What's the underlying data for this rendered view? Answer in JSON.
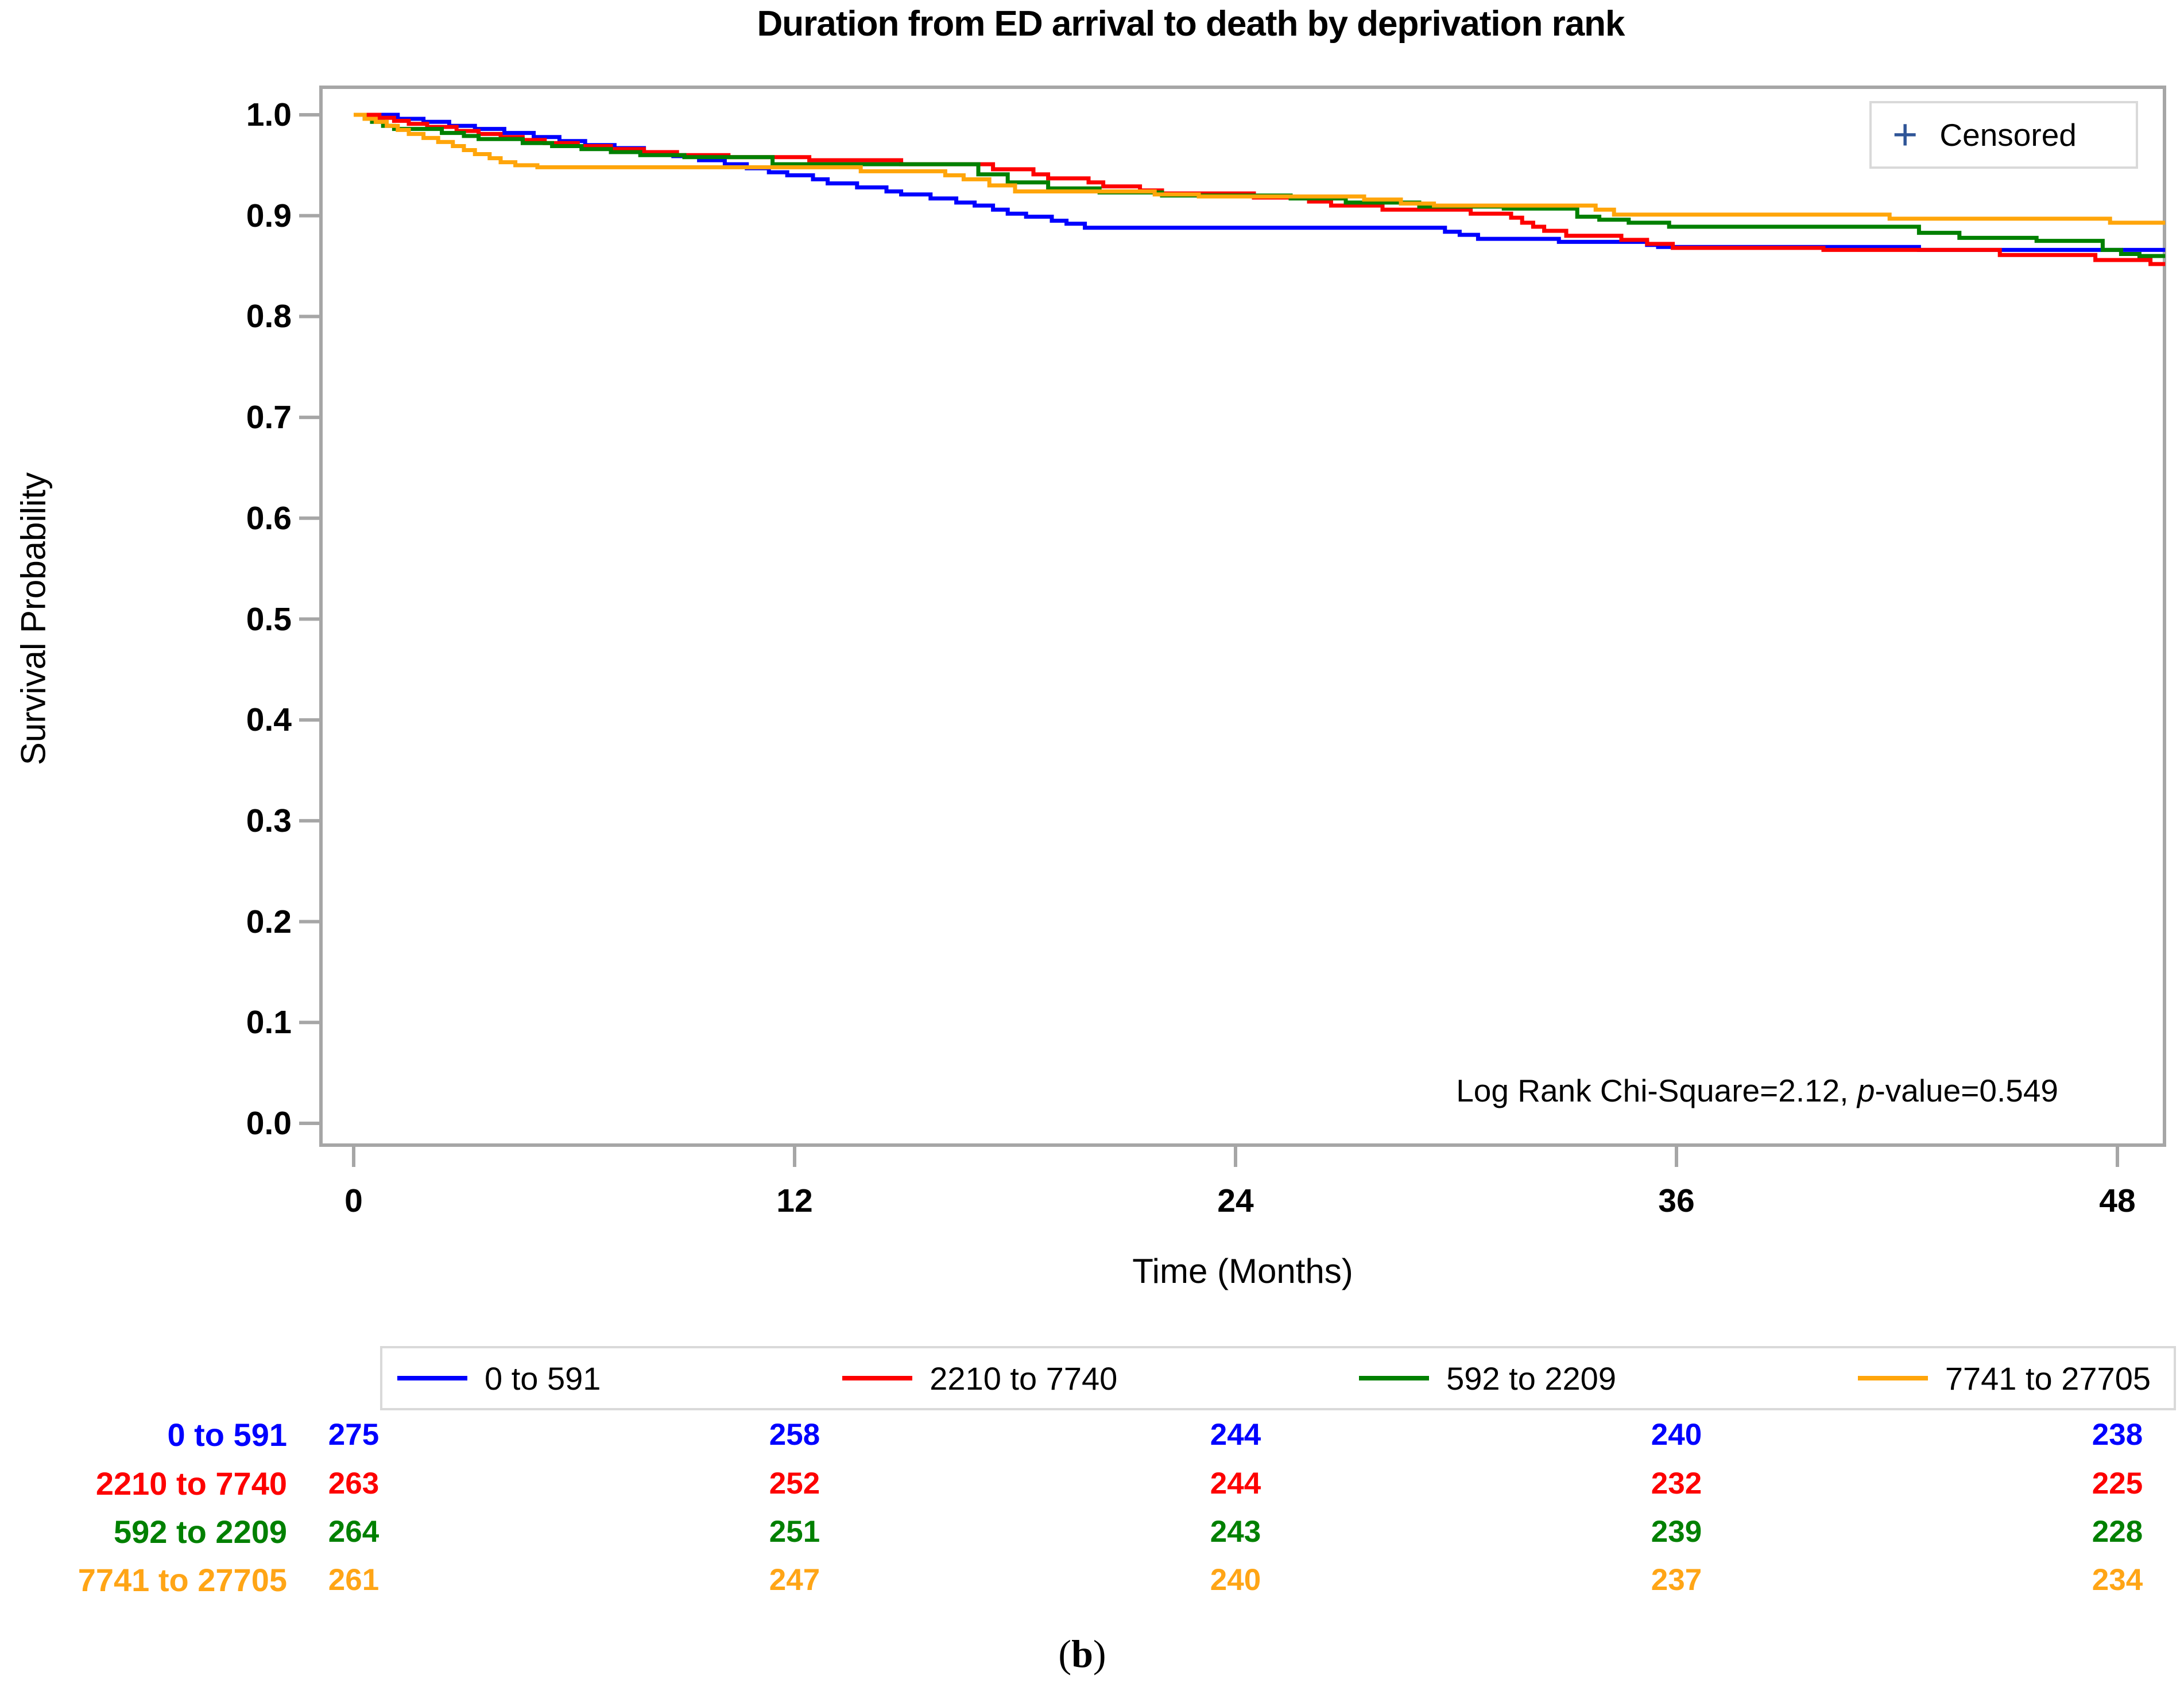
{
  "title": "Duration from ED arrival to death by deprivation rank",
  "caption_paren_open": "(",
  "caption_letter": "b",
  "caption_paren_close": ")",
  "censored": {
    "symbol": "+",
    "label": "Censored"
  },
  "annotation": {
    "prefix": "Log Rank Chi-Square=2.12, ",
    "p": "p",
    "suffix": "-value=0.549"
  },
  "axes": {
    "x": {
      "label": "Time (Months)",
      "ticks": [
        0,
        12,
        24,
        36,
        48
      ],
      "range": [
        0,
        49.3
      ]
    },
    "y": {
      "label": "Survival Probability",
      "tick_labels": [
        "1.0",
        "0.9",
        "0.8",
        "0.7",
        "0.6",
        "0.5",
        "0.4",
        "0.3",
        "0.2",
        "0.1",
        "0.0"
      ],
      "range": [
        0.0,
        1.0
      ]
    }
  },
  "style_colors": {
    "frame": "#a6a6a6",
    "legend_border": "#d9d9d9",
    "censor_plus": "#2f5597",
    "text": "#000000"
  },
  "chart_data": {
    "type": "line",
    "subtype": "kaplan-meier-step",
    "title": "Duration from ED arrival to death by deprivation rank",
    "xlabel": "Time (Months)",
    "ylabel": "Survival Probability",
    "xlim": [
      0,
      49.3
    ],
    "ylim": [
      0.0,
      1.0
    ],
    "x_ticks": [
      0,
      12,
      24,
      36,
      48
    ],
    "y_ticks": [
      1.0,
      0.9,
      0.8,
      0.7,
      0.6,
      0.5,
      0.4,
      0.3,
      0.2,
      0.1,
      0.0
    ],
    "grid": false,
    "legend_position": "bottom",
    "annotation": "Log Rank Chi-Square=2.12, p-value=0.549",
    "series": [
      {
        "name": "0 to 591",
        "color": "#0000fe",
        "points": [
          [
            0,
            1.0
          ],
          [
            1.2,
            0.996
          ],
          [
            1.9,
            0.993
          ],
          [
            2.6,
            0.989
          ],
          [
            3.3,
            0.986
          ],
          [
            4.1,
            0.982
          ],
          [
            4.9,
            0.978
          ],
          [
            5.6,
            0.974
          ],
          [
            6.3,
            0.97
          ],
          [
            7.1,
            0.967
          ],
          [
            7.9,
            0.963
          ],
          [
            8.7,
            0.959
          ],
          [
            9.4,
            0.955
          ],
          [
            10.1,
            0.951
          ],
          [
            10.7,
            0.947
          ],
          [
            11.3,
            0.943
          ],
          [
            11.8,
            0.94
          ],
          [
            12.5,
            0.936
          ],
          [
            12.9,
            0.932
          ],
          [
            13.7,
            0.928
          ],
          [
            14.5,
            0.924
          ],
          [
            14.9,
            0.921
          ],
          [
            15.7,
            0.917
          ],
          [
            16.4,
            0.913
          ],
          [
            16.9,
            0.91
          ],
          [
            17.4,
            0.906
          ],
          [
            17.8,
            0.902
          ],
          [
            18.3,
            0.899
          ],
          [
            19.0,
            0.895
          ],
          [
            19.4,
            0.892
          ],
          [
            19.9,
            0.888
          ],
          [
            29.7,
            0.884
          ],
          [
            30.1,
            0.881
          ],
          [
            30.6,
            0.877
          ],
          [
            32.8,
            0.874
          ],
          [
            35.2,
            0.871
          ],
          [
            35.5,
            0.869
          ],
          [
            42.6,
            0.866
          ],
          [
            49.3,
            0.866
          ]
        ]
      },
      {
        "name": "2210 to 7740",
        "color": "#fd0000",
        "points": [
          [
            0,
            1.0
          ],
          [
            0.7,
            0.997
          ],
          [
            1.1,
            0.994
          ],
          [
            1.5,
            0.991
          ],
          [
            2.0,
            0.988
          ],
          [
            2.8,
            0.984
          ],
          [
            3.4,
            0.981
          ],
          [
            4.0,
            0.978
          ],
          [
            4.6,
            0.975
          ],
          [
            5.2,
            0.972
          ],
          [
            6.1,
            0.969
          ],
          [
            7.0,
            0.966
          ],
          [
            7.9,
            0.963
          ],
          [
            8.8,
            0.96
          ],
          [
            10.2,
            0.958
          ],
          [
            12.4,
            0.955
          ],
          [
            14.9,
            0.951
          ],
          [
            17.4,
            0.946
          ],
          [
            18.5,
            0.941
          ],
          [
            18.9,
            0.937
          ],
          [
            20.0,
            0.933
          ],
          [
            20.4,
            0.929
          ],
          [
            21.4,
            0.925
          ],
          [
            22.0,
            0.922
          ],
          [
            24.5,
            0.918
          ],
          [
            26.0,
            0.914
          ],
          [
            26.6,
            0.91
          ],
          [
            28.0,
            0.906
          ],
          [
            30.4,
            0.902
          ],
          [
            31.5,
            0.898
          ],
          [
            31.8,
            0.893
          ],
          [
            32.1,
            0.889
          ],
          [
            32.4,
            0.885
          ],
          [
            33.0,
            0.88
          ],
          [
            34.5,
            0.876
          ],
          [
            35.2,
            0.872
          ],
          [
            35.9,
            0.868
          ],
          [
            40.0,
            0.866
          ],
          [
            44.8,
            0.861
          ],
          [
            47.4,
            0.856
          ],
          [
            48.9,
            0.852
          ],
          [
            49.3,
            0.852
          ]
        ]
      },
      {
        "name": "592 to 2209",
        "color": "#008000",
        "points": [
          [
            0,
            1.0
          ],
          [
            0.3,
            0.996
          ],
          [
            0.5,
            0.993
          ],
          [
            0.8,
            0.989
          ],
          [
            1.1,
            0.986
          ],
          [
            2.4,
            0.982
          ],
          [
            3.0,
            0.979
          ],
          [
            3.4,
            0.976
          ],
          [
            4.6,
            0.972
          ],
          [
            5.4,
            0.969
          ],
          [
            6.2,
            0.966
          ],
          [
            7.0,
            0.963
          ],
          [
            7.8,
            0.96
          ],
          [
            9.0,
            0.958
          ],
          [
            11.4,
            0.951
          ],
          [
            17.0,
            0.941
          ],
          [
            17.8,
            0.933
          ],
          [
            18.9,
            0.927
          ],
          [
            20.3,
            0.923
          ],
          [
            22.0,
            0.92
          ],
          [
            25.5,
            0.917
          ],
          [
            27.0,
            0.913
          ],
          [
            29.0,
            0.909
          ],
          [
            31.3,
            0.907
          ],
          [
            33.3,
            0.899
          ],
          [
            33.9,
            0.896
          ],
          [
            34.7,
            0.893
          ],
          [
            35.8,
            0.889
          ],
          [
            42.6,
            0.883
          ],
          [
            43.7,
            0.878
          ],
          [
            45.8,
            0.875
          ],
          [
            47.6,
            0.866
          ],
          [
            48.1,
            0.862
          ],
          [
            48.6,
            0.86
          ],
          [
            49.3,
            0.86
          ]
        ]
      },
      {
        "name": "7741 to 27705",
        "color": "#ffa50a",
        "points": [
          [
            0,
            1.0
          ],
          [
            0.3,
            0.996
          ],
          [
            0.6,
            0.993
          ],
          [
            0.9,
            0.989
          ],
          [
            1.2,
            0.985
          ],
          [
            1.5,
            0.981
          ],
          [
            1.9,
            0.977
          ],
          [
            2.3,
            0.973
          ],
          [
            2.7,
            0.969
          ],
          [
            3.0,
            0.965
          ],
          [
            3.3,
            0.961
          ],
          [
            3.7,
            0.957
          ],
          [
            4.0,
            0.953
          ],
          [
            4.4,
            0.95
          ],
          [
            5.0,
            0.948
          ],
          [
            13.8,
            0.944
          ],
          [
            16.1,
            0.94
          ],
          [
            16.6,
            0.936
          ],
          [
            17.3,
            0.93
          ],
          [
            18.0,
            0.924
          ],
          [
            21.8,
            0.921
          ],
          [
            23.0,
            0.919
          ],
          [
            27.5,
            0.916
          ],
          [
            28.5,
            0.912
          ],
          [
            29.4,
            0.91
          ],
          [
            33.8,
            0.906
          ],
          [
            34.3,
            0.901
          ],
          [
            41.8,
            0.897
          ],
          [
            47.8,
            0.893
          ],
          [
            49.3,
            0.893
          ]
        ]
      }
    ]
  },
  "risk_table": {
    "times": [
      0,
      12,
      24,
      36,
      48
    ],
    "rows": [
      {
        "label": "0 to 591",
        "color": "#0000fe",
        "counts": [
          275,
          258,
          244,
          240,
          238
        ]
      },
      {
        "label": "2210 to 7740",
        "color": "#fd0000",
        "counts": [
          263,
          252,
          244,
          232,
          225
        ]
      },
      {
        "label": "592 to 2209",
        "color": "#008000",
        "counts": [
          264,
          251,
          243,
          239,
          228
        ]
      },
      {
        "label": "7741 to 27705",
        "color": "#ffa516",
        "counts": [
          261,
          247,
          240,
          237,
          234
        ]
      }
    ]
  }
}
